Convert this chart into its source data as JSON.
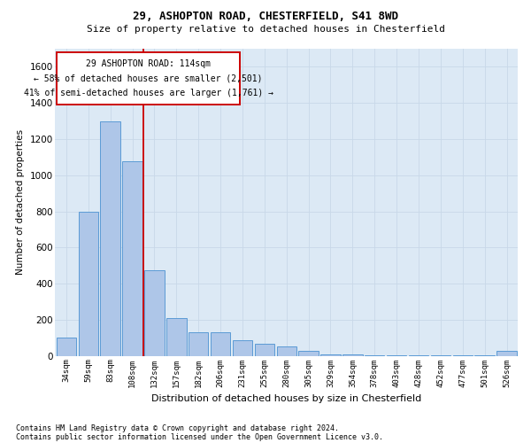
{
  "title1": "29, ASHOPTON ROAD, CHESTERFIELD, S41 8WD",
  "title2": "Size of property relative to detached houses in Chesterfield",
  "xlabel": "Distribution of detached houses by size in Chesterfield",
  "ylabel": "Number of detached properties",
  "categories": [
    "34sqm",
    "59sqm",
    "83sqm",
    "108sqm",
    "132sqm",
    "157sqm",
    "182sqm",
    "206sqm",
    "231sqm",
    "255sqm",
    "280sqm",
    "305sqm",
    "329sqm",
    "354sqm",
    "378sqm",
    "403sqm",
    "428sqm",
    "452sqm",
    "477sqm",
    "501sqm",
    "526sqm"
  ],
  "values": [
    100,
    800,
    1300,
    1075,
    475,
    210,
    130,
    130,
    85,
    65,
    50,
    30,
    8,
    8,
    5,
    5,
    3,
    3,
    3,
    3,
    30
  ],
  "bar_color": "#aec6e8",
  "bar_edge_color": "#5b9bd5",
  "grid_color": "#c8d8e8",
  "bg_color": "#dce9f5",
  "annotation_box_color": "#cc0000",
  "vline_color": "#cc0000",
  "annotation_line1": "29 ASHOPTON ROAD: 114sqm",
  "annotation_line2": "← 58% of detached houses are smaller (2,501)",
  "annotation_line3": "41% of semi-detached houses are larger (1,761) →",
  "footnote1": "Contains HM Land Registry data © Crown copyright and database right 2024.",
  "footnote2": "Contains public sector information licensed under the Open Government Licence v3.0.",
  "ylim": [
    0,
    1700
  ],
  "yticks": [
    0,
    200,
    400,
    600,
    800,
    1000,
    1200,
    1400,
    1600
  ]
}
